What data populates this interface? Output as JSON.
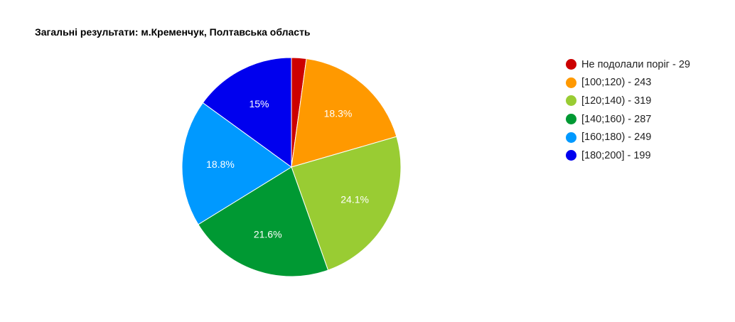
{
  "chart_data": {
    "type": "pie",
    "title": "Загальні результати: м.Кременчук, Полтавська область",
    "slices": [
      {
        "label": "Не подолали поріг - 29",
        "value": 29,
        "percent_label": "",
        "color": "#cc0000"
      },
      {
        "label": "[100;120) - 243",
        "value": 243,
        "percent_label": "18.3%",
        "color": "#ff9900"
      },
      {
        "label": "[120;140) - 319",
        "value": 319,
        "percent_label": "24.1%",
        "color": "#99cc33"
      },
      {
        "label": "[140;160) - 287",
        "value": 287,
        "percent_label": "21.6%",
        "color": "#009933"
      },
      {
        "label": "[160;180) - 249",
        "value": 249,
        "percent_label": "18.8%",
        "color": "#0099ff"
      },
      {
        "label": "[180;200] - 199",
        "value": 199,
        "percent_label": "15%",
        "color": "#0000ee"
      }
    ],
    "legend_position": "right"
  }
}
